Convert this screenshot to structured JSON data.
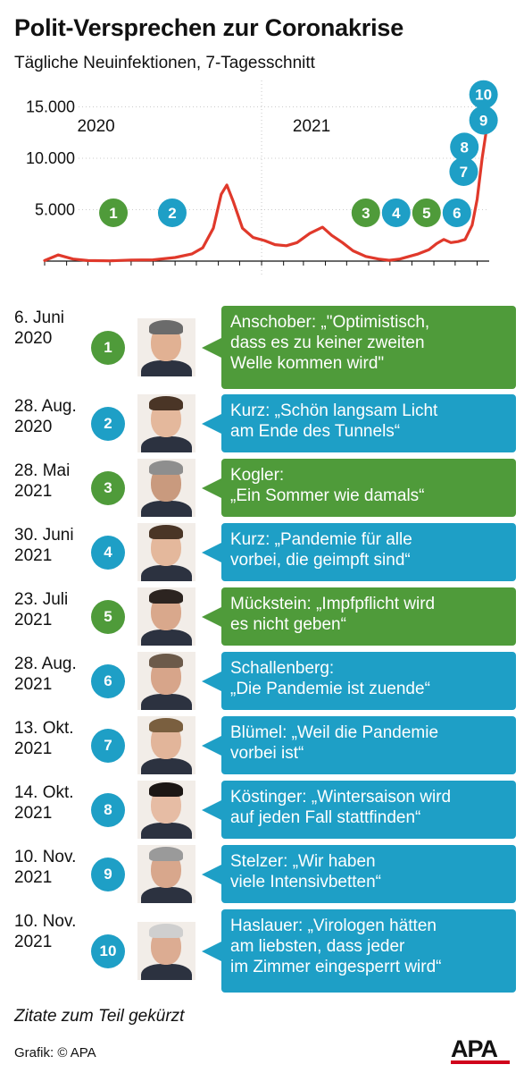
{
  "title": "Polit-Versprechen zur Coronakrise",
  "subtitle": "Tägliche Neuinfektionen, 7-Tagesschnitt",
  "colors": {
    "green": "#4f9b3a",
    "blue": "#1e9fc6",
    "line": "#e0392b",
    "axis": "#111111",
    "grid": "#bbbbbb"
  },
  "chart_data": {
    "type": "line",
    "series": [
      {
        "values": [
          [
            "2020-03-01",
            50
          ],
          [
            "2020-03-20",
            600
          ],
          [
            "2020-04-10",
            200
          ],
          [
            "2020-05-01",
            50
          ],
          [
            "2020-06-01",
            30
          ],
          [
            "2020-07-01",
            100
          ],
          [
            "2020-08-01",
            120
          ],
          [
            "2020-09-01",
            350
          ],
          [
            "2020-09-25",
            700
          ],
          [
            "2020-10-10",
            1300
          ],
          [
            "2020-10-25",
            3200
          ],
          [
            "2020-11-05",
            6500
          ],
          [
            "2020-11-13",
            7400
          ],
          [
            "2020-11-22",
            5800
          ],
          [
            "2020-12-05",
            3200
          ],
          [
            "2020-12-20",
            2300
          ],
          [
            "2021-01-05",
            2000
          ],
          [
            "2021-01-20",
            1600
          ],
          [
            "2021-02-05",
            1500
          ],
          [
            "2021-02-20",
            1800
          ],
          [
            "2021-03-10",
            2700
          ],
          [
            "2021-03-28",
            3300
          ],
          [
            "2021-04-10",
            2500
          ],
          [
            "2021-04-25",
            1800
          ],
          [
            "2021-05-10",
            1000
          ],
          [
            "2021-05-28",
            450
          ],
          [
            "2021-06-15",
            200
          ],
          [
            "2021-06-30",
            80
          ],
          [
            "2021-07-15",
            200
          ],
          [
            "2021-07-28",
            450
          ],
          [
            "2021-08-10",
            700
          ],
          [
            "2021-08-25",
            1100
          ],
          [
            "2021-09-05",
            1700
          ],
          [
            "2021-09-15",
            2100
          ],
          [
            "2021-09-25",
            1800
          ],
          [
            "2021-10-05",
            1900
          ],
          [
            "2021-10-15",
            2100
          ],
          [
            "2021-10-25",
            3500
          ],
          [
            "2021-11-01",
            6000
          ],
          [
            "2021-11-08",
            10000
          ],
          [
            "2021-11-14",
            12700
          ]
        ]
      }
    ],
    "yticks": [
      5000,
      10000,
      15000
    ],
    "ytick_labels": [
      "5.000",
      "10.000",
      "15.000"
    ],
    "ylim": [
      0,
      16000
    ],
    "xlim": [
      "2020-03-01",
      "2021-11-18"
    ],
    "year_labels": [
      {
        "label": "2020",
        "date": "2020-05-01"
      },
      {
        "label": "2021",
        "date": "2021-03-01"
      }
    ],
    "year_divider": "2021-01-01",
    "grid": true,
    "markers": [
      {
        "n": "1",
        "date": "2020-06-06",
        "y": 4700,
        "color": "green"
      },
      {
        "n": "2",
        "date": "2020-08-28",
        "y": 4700,
        "color": "blue"
      },
      {
        "n": "3",
        "date": "2021-05-28",
        "y": 4700,
        "color": "green"
      },
      {
        "n": "4",
        "date": "2021-06-30",
        "y": 4700,
        "color": "blue"
      },
      {
        "n": "5",
        "date": "2021-07-23",
        "y": 4700,
        "color": "green"
      },
      {
        "n": "6",
        "date": "2021-08-28",
        "y": 4700,
        "color": "blue"
      },
      {
        "n": "7",
        "date": "2021-10-13",
        "y": 8700,
        "color": "blue"
      },
      {
        "n": "8",
        "date": "2021-10-14",
        "y": 11100,
        "color": "blue"
      },
      {
        "n": "9",
        "date": "2021-11-10",
        "y": 13700,
        "color": "blue"
      },
      {
        "n": "10",
        "date": "2021-11-10",
        "y": 16200,
        "color": "blue"
      }
    ]
  },
  "entries": [
    {
      "n": "1",
      "date": "6. Juni\n2020",
      "color": "green",
      "quote": "Anschober: „\"Optimistisch,\ndass es zu keiner zweiten\nWelle kommen wird\"",
      "person": "anschober"
    },
    {
      "n": "2",
      "date": "28. Aug.\n2020",
      "color": "blue",
      "quote": "Kurz: „Schön langsam Licht\nam Ende des Tunnels“",
      "person": "kurz"
    },
    {
      "n": "3",
      "date": "28. Mai\n2021",
      "color": "green",
      "quote": "Kogler:\n„Ein Sommer wie damals“",
      "person": "kogler"
    },
    {
      "n": "4",
      "date": "30. Juni\n2021",
      "color": "blue",
      "quote": "Kurz: „Pandemie für alle\nvorbei, die geimpft sind“",
      "person": "kurz"
    },
    {
      "n": "5",
      "date": "23. Juli\n2021",
      "color": "green",
      "quote": "Mückstein: „Impfpflicht wird\nes nicht geben“",
      "person": "mueckstein"
    },
    {
      "n": "6",
      "date": "28. Aug.\n2021",
      "color": "blue",
      "quote": "Schallenberg:\n„Die Pandemie ist zuende“",
      "person": "schallenberg"
    },
    {
      "n": "7",
      "date": "13. Okt.\n2021",
      "color": "blue",
      "quote": "Blümel: „Weil die Pandemie\nvorbei ist“",
      "person": "bluemel"
    },
    {
      "n": "8",
      "date": "14. Okt.\n2021",
      "color": "blue",
      "quote": "Köstinger: „Wintersaison wird\nauf jeden Fall stattfinden“",
      "person": "koestinger"
    },
    {
      "n": "9",
      "date": "10. Nov.\n2021",
      "color": "blue",
      "quote": "Stelzer: „Wir haben\nviele Intensivbetten“",
      "person": "stelzer"
    },
    {
      "n": "10",
      "date": "10. Nov.\n2021",
      "color": "blue",
      "quote": "Haslauer: „Virologen hätten\nam liebsten, dass jeder\nim Zimmer eingesperrt wird“",
      "person": "haslauer"
    }
  ],
  "footnote": "Zitate zum Teil gekürzt",
  "credit": "Grafik: © APA",
  "logo_text": "APA"
}
